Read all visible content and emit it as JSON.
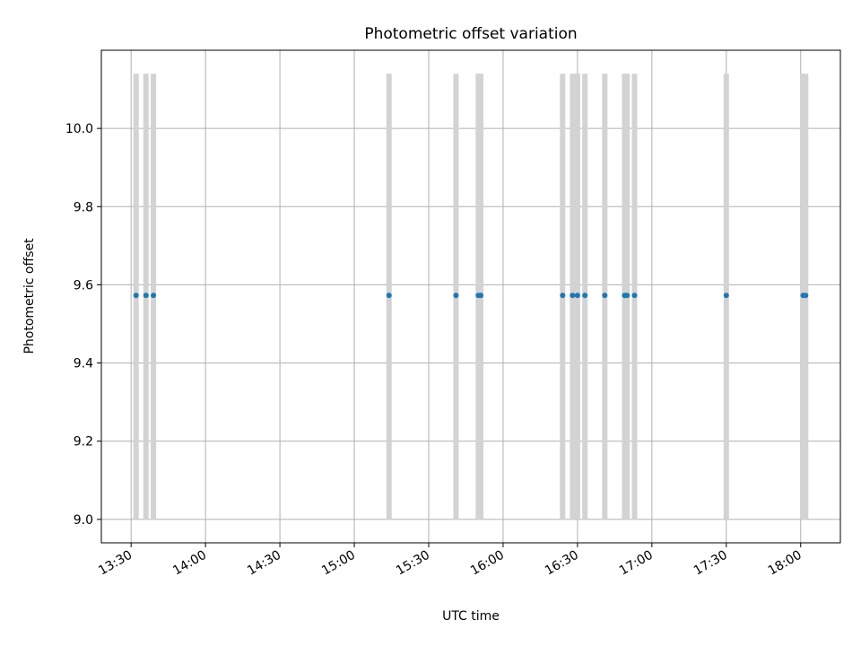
{
  "chart_data": {
    "type": "scatter",
    "title": "Photometric offset variation",
    "xlabel": "UTC time",
    "ylabel": "Photometric offset",
    "x_tick_labels": [
      "13:30",
      "14:00",
      "14:30",
      "15:00",
      "15:30",
      "16:00",
      "16:30",
      "17:00",
      "17:30",
      "18:00"
    ],
    "y_ticks": [
      9.0,
      9.2,
      9.4,
      9.6,
      9.8,
      10.0
    ],
    "y_tick_labels": [
      "9.0",
      "9.2",
      "9.4",
      "9.6",
      "9.8",
      "10.0"
    ],
    "xlim": [
      "13:18",
      "18:16"
    ],
    "ylim": [
      8.94,
      10.2
    ],
    "grid": true,
    "points": [
      {
        "time": "13:32",
        "offset": 9.573
      },
      {
        "time": "13:36",
        "offset": 9.573
      },
      {
        "time": "13:39",
        "offset": 9.573
      },
      {
        "time": "15:14",
        "offset": 9.573
      },
      {
        "time": "15:41",
        "offset": 9.573
      },
      {
        "time": "15:50",
        "offset": 9.573
      },
      {
        "time": "15:51",
        "offset": 9.573
      },
      {
        "time": "16:24",
        "offset": 9.573
      },
      {
        "time": "16:28",
        "offset": 9.573
      },
      {
        "time": "16:30",
        "offset": 9.573
      },
      {
        "time": "16:33",
        "offset": 9.573
      },
      {
        "time": "16:41",
        "offset": 9.573
      },
      {
        "time": "16:49",
        "offset": 9.573
      },
      {
        "time": "16:50",
        "offset": 9.573
      },
      {
        "time": "16:53",
        "offset": 9.573
      },
      {
        "time": "17:30",
        "offset": 9.573
      },
      {
        "time": "18:01",
        "offset": 9.573
      },
      {
        "time": "18:02",
        "offset": 9.573
      }
    ],
    "error_range": [
      9.0,
      10.14
    ],
    "colors": {
      "points": "#1f77b4",
      "error_bars": "#d3d3d3",
      "grid": "#b0b0b0"
    }
  }
}
